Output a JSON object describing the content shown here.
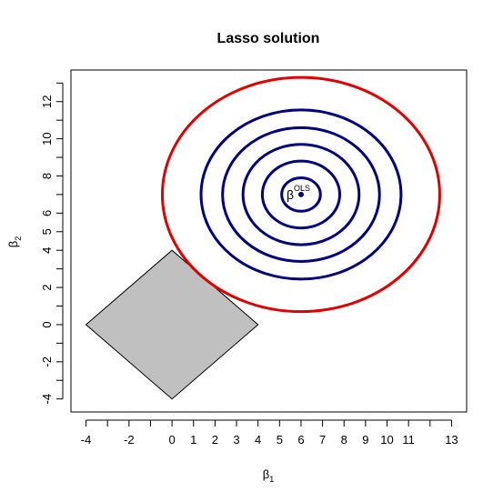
{
  "chart_data": {
    "type": "contour",
    "title": "Lasso solution",
    "xlabel": {
      "symbol": "β",
      "subscript": "1"
    },
    "ylabel": {
      "symbol": "β",
      "subscript": "2"
    },
    "xlim": [
      -4.7,
      13.7
    ],
    "ylim": [
      -4.7,
      13.7
    ],
    "x_ticks": [
      -4,
      -2,
      0,
      1,
      2,
      3,
      4,
      5,
      6,
      7,
      8,
      9,
      10,
      11,
      13
    ],
    "x_tick_labels": [
      "-4",
      "-2",
      "0",
      "1",
      "2",
      "3",
      "4",
      "5",
      "6",
      "7",
      "8",
      "9",
      "10",
      "11",
      "13"
    ],
    "x_minor_ticks": [
      -3,
      -1,
      12
    ],
    "y_ticks": [
      -4,
      -2,
      0,
      2,
      4,
      5,
      6,
      8,
      10,
      12
    ],
    "y_tick_labels": [
      "-4",
      "-2",
      "0",
      "2",
      "4",
      "5",
      "6",
      "8",
      "10",
      "12"
    ],
    "y_minor_ticks": [
      -3,
      -1,
      1,
      3,
      7,
      9,
      11,
      13
    ],
    "constraint_region": {
      "shape": "diamond",
      "vertices": [
        [
          -4,
          0
        ],
        [
          0,
          4
        ],
        [
          4,
          0
        ],
        [
          0,
          -4
        ]
      ],
      "fill": "#c0c0c0",
      "stroke": "#000000"
    },
    "ols_point": {
      "x": 6,
      "y": 7,
      "label": "β",
      "label_sup": "OLS",
      "color": "#000080"
    },
    "contours": [
      {
        "cx": 6,
        "cy": 7,
        "rx": 0.9,
        "ry": 0.9,
        "color": "#000080"
      },
      {
        "cx": 6,
        "cy": 7,
        "rx": 1.8,
        "ry": 1.8,
        "color": "#000080"
      },
      {
        "cx": 6,
        "cy": 7,
        "rx": 2.7,
        "ry": 2.7,
        "color": "#000080"
      },
      {
        "cx": 6,
        "cy": 7,
        "rx": 3.65,
        "ry": 3.6,
        "color": "#000080"
      },
      {
        "cx": 6,
        "cy": 7,
        "rx": 4.65,
        "ry": 4.55,
        "color": "#000080"
      },
      {
        "cx": 6,
        "cy": 7,
        "rx": 6.45,
        "ry": 6.3,
        "color": "#e00000"
      }
    ],
    "grid": false,
    "legend": "none"
  }
}
